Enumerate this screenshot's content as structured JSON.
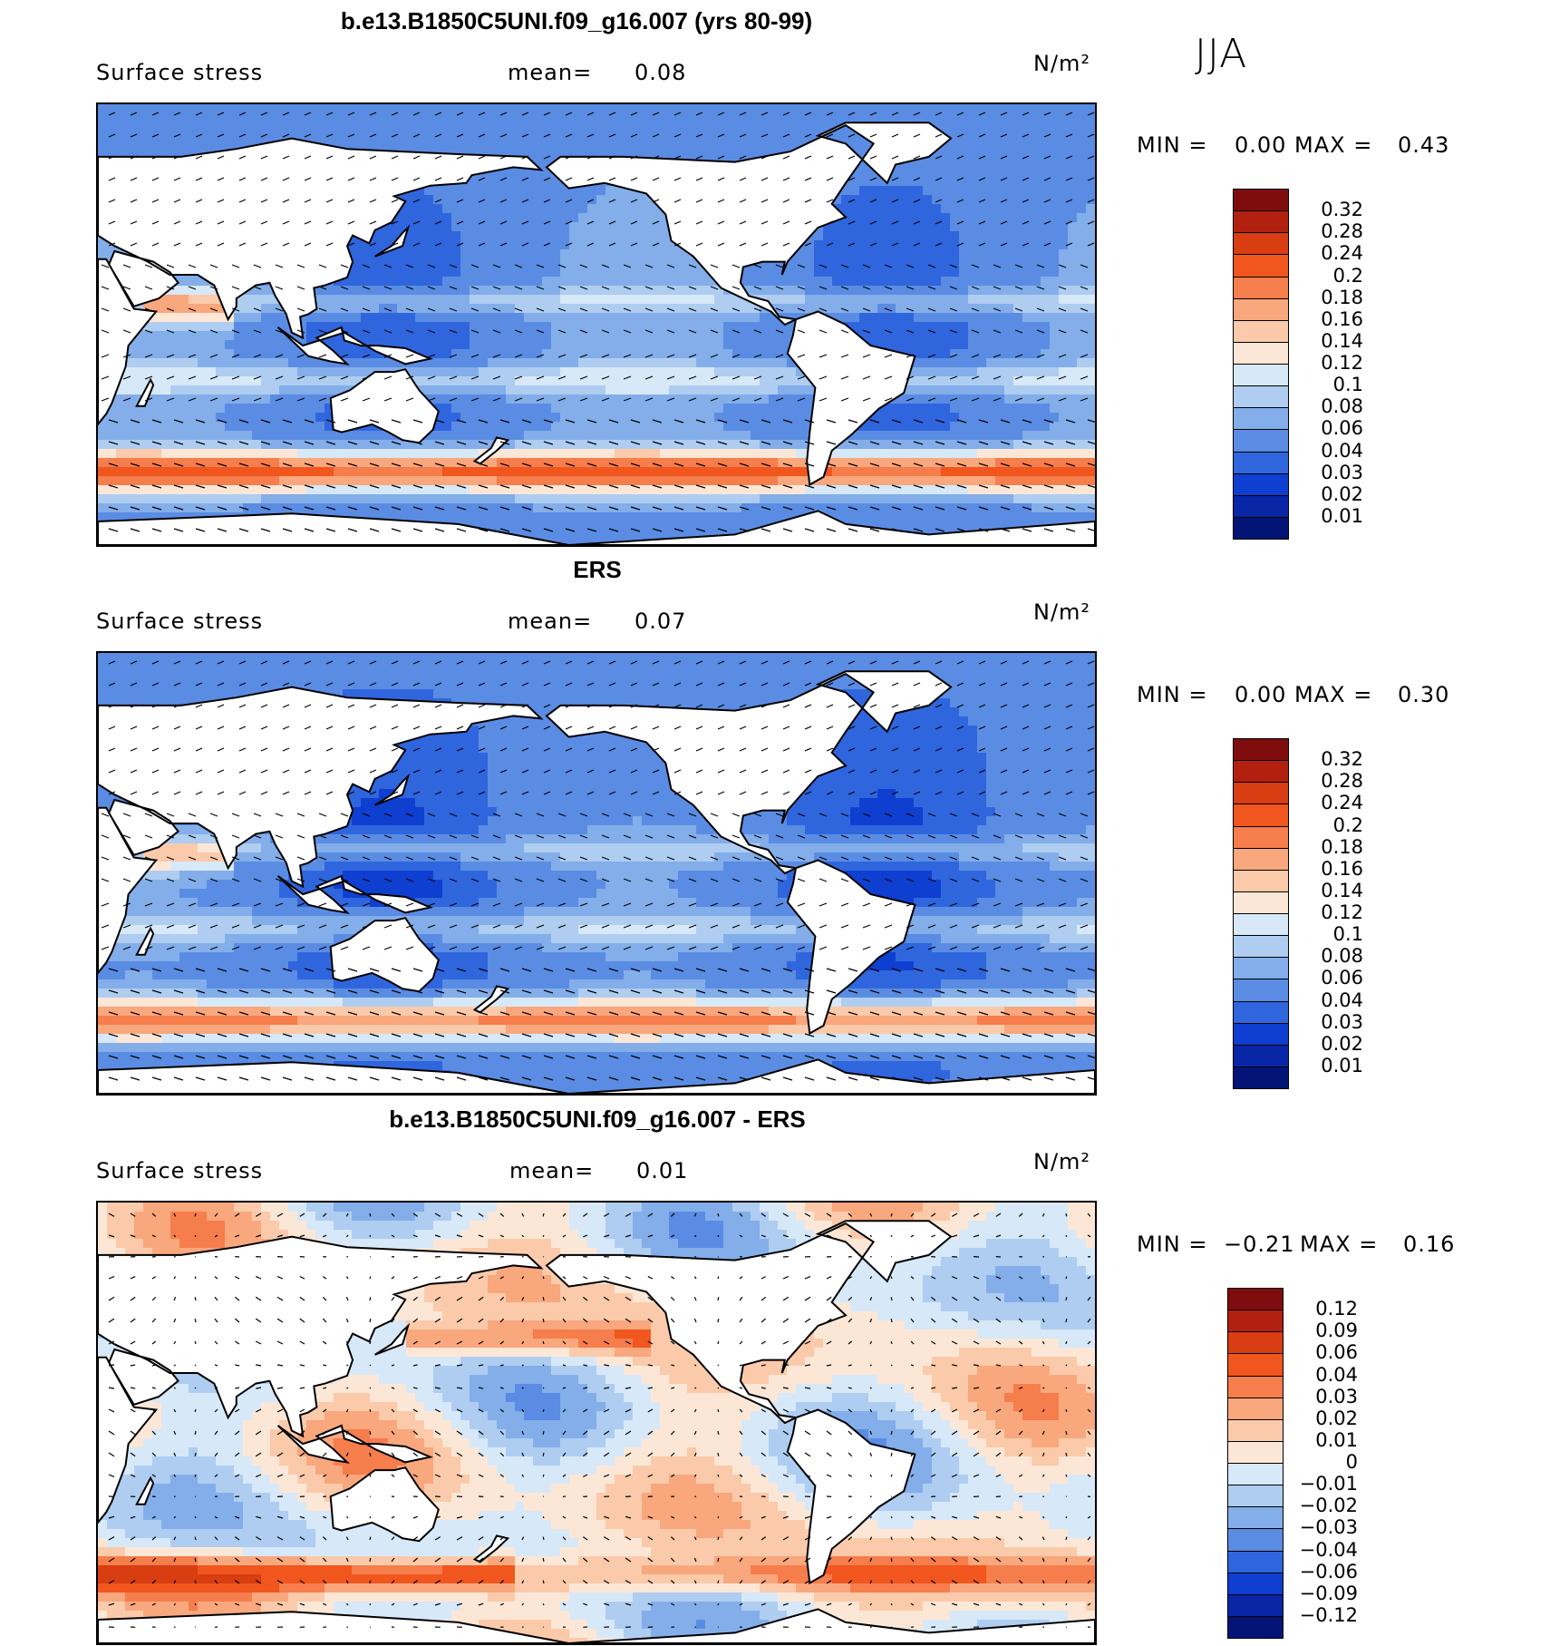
{
  "season": "JJA",
  "chart_data": [
    {
      "type": "heatmap",
      "title": "b.e13.B1850C5UNI.f09_g16.007 (yrs 80-99)",
      "variable": "Surface stress",
      "mean_label": "mean=",
      "mean_value": "0.08",
      "units": "N/m²",
      "min_label": "MIN =",
      "min_value": "0.00",
      "max_label": "MAX =",
      "max_value": "0.43",
      "colorbar_levels": [
        "0.32",
        "0.28",
        "0.24",
        "0.2",
        "0.18",
        "0.16",
        "0.14",
        "0.12",
        "0.1",
        "0.08",
        "0.06",
        "0.04",
        "0.03",
        "0.02",
        "0.01"
      ],
      "colorbar_colors": [
        "#7f0d0d",
        "#b2200f",
        "#d93d12",
        "#f0561d",
        "#f67d4c",
        "#f9a77d",
        "#fbcaaa",
        "#fce7d6",
        "#d7e8f8",
        "#aecdf1",
        "#83aeea",
        "#5a8ce3",
        "#2f66de",
        "#0f3fd0",
        "#0826a6",
        "#021577"
      ],
      "field_key": "model"
    },
    {
      "type": "heatmap",
      "title": "ERS",
      "variable": "Surface stress",
      "mean_label": "mean=",
      "mean_value": "0.07",
      "units": "N/m²",
      "min_label": "MIN =",
      "min_value": "0.00",
      "max_label": "MAX =",
      "max_value": "0.30",
      "colorbar_levels": [
        "0.32",
        "0.28",
        "0.24",
        "0.2",
        "0.18",
        "0.16",
        "0.14",
        "0.12",
        "0.1",
        "0.08",
        "0.06",
        "0.04",
        "0.03",
        "0.02",
        "0.01"
      ],
      "colorbar_colors": [
        "#7f0d0d",
        "#b2200f",
        "#d93d12",
        "#f0561d",
        "#f67d4c",
        "#f9a77d",
        "#fbcaaa",
        "#fce7d6",
        "#d7e8f8",
        "#aecdf1",
        "#83aeea",
        "#5a8ce3",
        "#2f66de",
        "#0f3fd0",
        "#0826a6",
        "#021577"
      ],
      "field_key": "obs"
    },
    {
      "type": "heatmap",
      "title": "b.e13.B1850C5UNI.f09_g16.007 - ERS",
      "variable": "Surface stress",
      "mean_label": "mean=",
      "mean_value": "0.01",
      "units": "N/m²",
      "min_label": "MIN =",
      "min_value": "−0.21",
      "max_label": "MAX =",
      "max_value": "0.16",
      "colorbar_levels": [
        "0.12",
        "0.09",
        "0.06",
        "0.04",
        "0.03",
        "0.02",
        "0.01",
        "0",
        "−0.01",
        "−0.02",
        "−0.03",
        "−0.04",
        "−0.06",
        "−0.09",
        "−0.12"
      ],
      "colorbar_colors": [
        "#7f0d0d",
        "#b2200f",
        "#d93d12",
        "#f0561d",
        "#f67d4c",
        "#f9a77d",
        "#fbcaaa",
        "#fce7d6",
        "#d7e8f8",
        "#aecdf1",
        "#83aeea",
        "#5a8ce3",
        "#2f66de",
        "#0f3fd0",
        "#0826a6",
        "#021577"
      ],
      "field_key": "diff"
    }
  ]
}
